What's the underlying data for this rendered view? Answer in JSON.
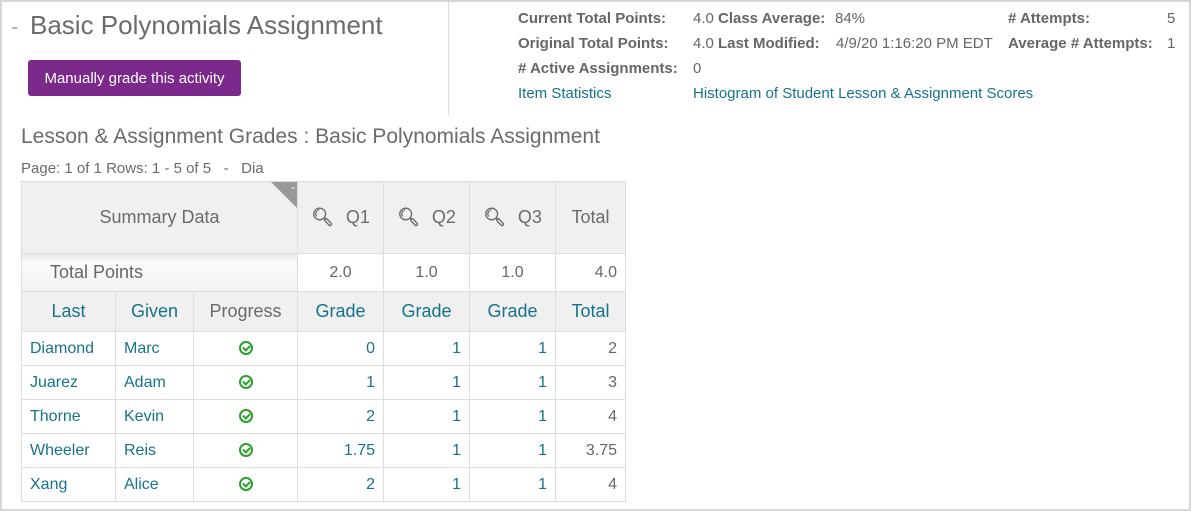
{
  "header": {
    "collapse_symbol": "-",
    "title": "Basic Polynomials Assignment",
    "grade_button": "Manually grade this activity"
  },
  "stats": {
    "current_total_points_label": "Current Total Points:",
    "current_total_points": "4.0",
    "class_average_label": "Class Average:",
    "class_average": "84%",
    "attempts_label": "# Attempts:",
    "attempts": "5",
    "original_total_points_label": "Original Total Points:",
    "original_total_points": "4.0",
    "last_modified_label": "Last Modified:",
    "last_modified": "4/9/20 1:16:20 PM EDT",
    "average_attempts_label": "Average # Attempts:",
    "average_attempts": "1",
    "active_assignments_label": "# Active Assignments:",
    "active_assignments": "0",
    "item_statistics_link": "Item Statistics",
    "histogram_link": "Histogram of Student Lesson & Assignment Scores"
  },
  "grades": {
    "title": "Lesson & Assignment Grades : Basic Polynomials Assignment",
    "pager": "Page: 1 of 1 Rows: 1 - 5 of 5   -   Dia",
    "summary_label": "Summary Data",
    "collapse_symbol": "-",
    "questions": [
      "Q1",
      "Q2",
      "Q3"
    ],
    "total_label": "Total",
    "total_points_label": "Total Points",
    "total_points": [
      "2.0",
      "1.0",
      "1.0",
      "4.0"
    ],
    "columns": [
      "Last",
      "Given",
      "Progress",
      "Grade",
      "Grade",
      "Grade",
      "Total"
    ],
    "accent_color": "#17728c",
    "progress_color": "#2aa12a",
    "rows": [
      {
        "last": "Diamond",
        "given": "Marc",
        "progress": "complete",
        "q1": "0",
        "q2": "1",
        "q3": "1",
        "total": "2"
      },
      {
        "last": "Juarez",
        "given": "Adam",
        "progress": "complete",
        "q1": "1",
        "q2": "1",
        "q3": "1",
        "total": "3"
      },
      {
        "last": "Thorne",
        "given": "Kevin",
        "progress": "complete",
        "q1": "2",
        "q2": "1",
        "q3": "1",
        "total": "4"
      },
      {
        "last": "Wheeler",
        "given": "Reis",
        "progress": "complete",
        "q1": "1.75",
        "q2": "1",
        "q3": "1",
        "total": "3.75"
      },
      {
        "last": "Xang",
        "given": "Alice",
        "progress": "complete",
        "q1": "2",
        "q2": "1",
        "q3": "1",
        "total": "4"
      }
    ]
  }
}
